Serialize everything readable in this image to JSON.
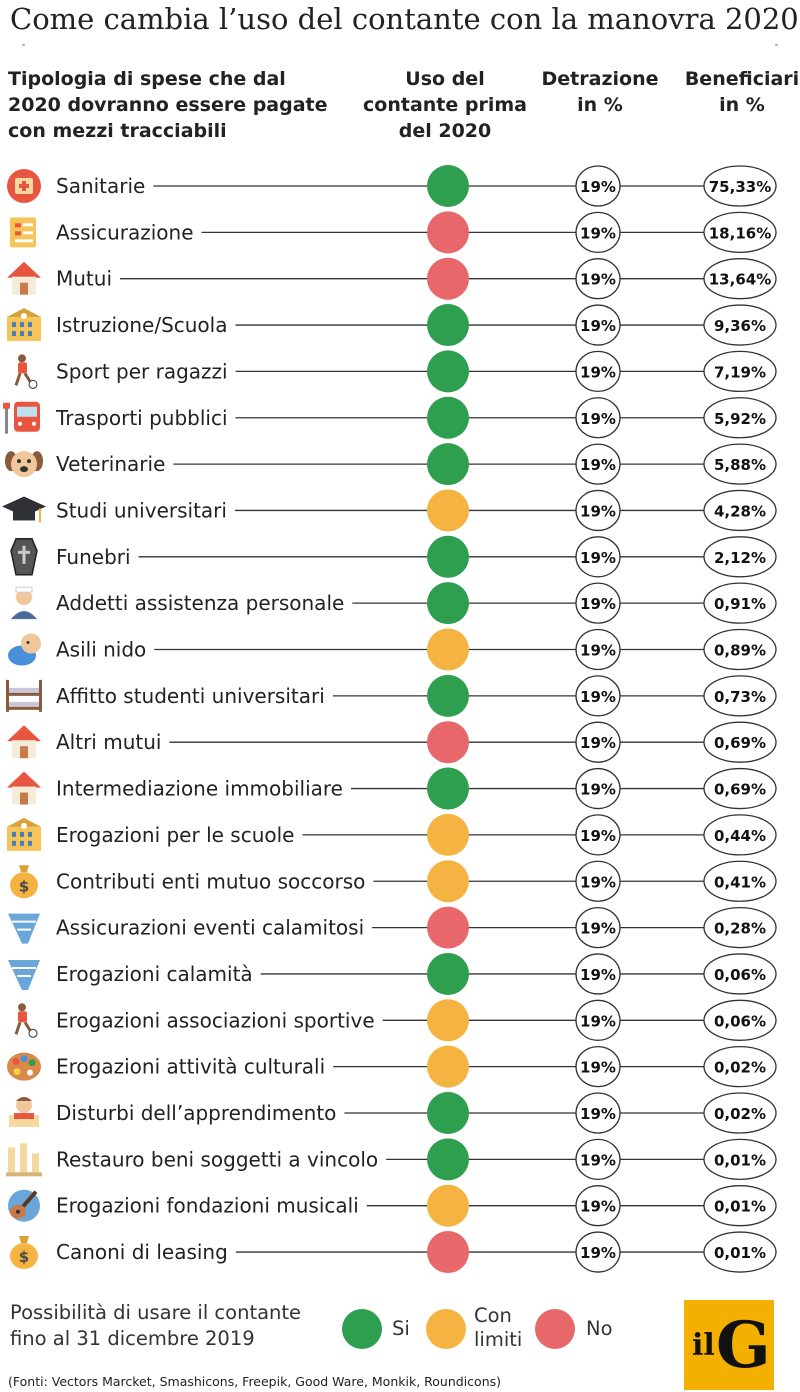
{
  "title": "Come cambia l’uso del contante con la manovra 2020",
  "headers": {
    "col1": [
      "Tipologia di spese che dal",
      "2020 dovranno essere pagate",
      "con mezzi tracciabili"
    ],
    "col2": [
      "Uso del",
      "contante prima",
      "del 2020"
    ],
    "col3": [
      "Detrazione",
      "in %"
    ],
    "col4": [
      "Beneficiari",
      "in %"
    ]
  },
  "colors": {
    "si": "#2e9e4f",
    "con_limiti": "#f5b342",
    "no": "#e8676a",
    "line": "#333333"
  },
  "chart_data": {
    "type": "table",
    "columns": [
      "Tipologia di spese",
      "Uso del contante prima del 2020",
      "Detrazione in %",
      "Beneficiari in %"
    ],
    "rows": [
      {
        "label": "Sanitarie",
        "icon": "first-aid-kit-icon",
        "cash": "si",
        "detrazione": "19%",
        "beneficiari": "75,33%"
      },
      {
        "label": "Assicurazione",
        "icon": "insurance-document-icon",
        "cash": "no",
        "detrazione": "19%",
        "beneficiari": "18,16%"
      },
      {
        "label": "Mutui",
        "icon": "house-icon",
        "cash": "no",
        "detrazione": "19%",
        "beneficiari": "13,64%"
      },
      {
        "label": "Istruzione/Scuola",
        "icon": "school-building-icon",
        "cash": "si",
        "detrazione": "19%",
        "beneficiari": "9,36%"
      },
      {
        "label": "Sport per ragazzi",
        "icon": "soccer-player-icon",
        "cash": "si",
        "detrazione": "19%",
        "beneficiari": "7,19%"
      },
      {
        "label": "Trasporti pubblici",
        "icon": "bus-icon",
        "cash": "si",
        "detrazione": "19%",
        "beneficiari": "5,92%"
      },
      {
        "label": "Veterinarie",
        "icon": "dog-icon",
        "cash": "si",
        "detrazione": "19%",
        "beneficiari": "5,88%"
      },
      {
        "label": "Studi universitari",
        "icon": "graduation-cap-icon",
        "cash": "con_limiti",
        "detrazione": "19%",
        "beneficiari": "4,28%"
      },
      {
        "label": "Funebri",
        "icon": "coffin-icon",
        "cash": "si",
        "detrazione": "19%",
        "beneficiari": "2,12%"
      },
      {
        "label": "Addetti assistenza personale",
        "icon": "nurse-icon",
        "cash": "si",
        "detrazione": "19%",
        "beneficiari": "0,91%"
      },
      {
        "label": "Asili nido",
        "icon": "baby-icon",
        "cash": "con_limiti",
        "detrazione": "19%",
        "beneficiari": "0,89%"
      },
      {
        "label": "Affitto studenti universitari",
        "icon": "bunk-bed-icon",
        "cash": "si",
        "detrazione": "19%",
        "beneficiari": "0,73%"
      },
      {
        "label": "Altri mutui",
        "icon": "house-icon",
        "cash": "no",
        "detrazione": "19%",
        "beneficiari": "0,69%"
      },
      {
        "label": "Intermediazione immobiliare",
        "icon": "house-icon",
        "cash": "si",
        "detrazione": "19%",
        "beneficiari": "0,69%"
      },
      {
        "label": "Erogazioni per le scuole",
        "icon": "school-building-icon",
        "cash": "con_limiti",
        "detrazione": "19%",
        "beneficiari": "0,44%"
      },
      {
        "label": "Contributi enti mutuo soccorso",
        "icon": "money-bag-icon",
        "cash": "con_limiti",
        "detrazione": "19%",
        "beneficiari": "0,41%"
      },
      {
        "label": "Assicurazioni eventi calamitosi",
        "icon": "tornado-icon",
        "cash": "no",
        "detrazione": "19%",
        "beneficiari": "0,28%"
      },
      {
        "label": "Erogazioni calamità",
        "icon": "tornado-icon",
        "cash": "si",
        "detrazione": "19%",
        "beneficiari": "0,06%"
      },
      {
        "label": "Erogazioni associazioni sportive",
        "icon": "soccer-player-icon",
        "cash": "con_limiti",
        "detrazione": "19%",
        "beneficiari": "0,06%"
      },
      {
        "label": "Erogazioni attività culturali",
        "icon": "paint-palette-icon",
        "cash": "con_limiti",
        "detrazione": "19%",
        "beneficiari": "0,02%"
      },
      {
        "label": "Disturbi dell’apprendimento",
        "icon": "student-reading-icon",
        "cash": "si",
        "detrazione": "19%",
        "beneficiari": "0,02%"
      },
      {
        "label": "Restauro beni soggetti a vincolo",
        "icon": "ruined-columns-icon",
        "cash": "si",
        "detrazione": "19%",
        "beneficiari": "0,01%"
      },
      {
        "label": "Erogazioni fondazioni musicali",
        "icon": "guitar-icon",
        "cash": "con_limiti",
        "detrazione": "19%",
        "beneficiari": "0,01%"
      },
      {
        "label": "Canoni di leasing",
        "icon": "money-bag-icon",
        "cash": "no",
        "detrazione": "19%",
        "beneficiari": "0,01%"
      }
    ]
  },
  "legend": {
    "note": [
      "Possibilità di usare il contante",
      "fino al 31 dicembre 2019"
    ],
    "si": "Si",
    "con_limiti": [
      "Con",
      "limiti"
    ],
    "no": "No"
  },
  "logo": {
    "il": "il",
    "g": "G"
  },
  "sources": "(Fonti: Vectors Marcket, Smashicons, Freepik, Good Ware, Monkik, Roundicons)"
}
